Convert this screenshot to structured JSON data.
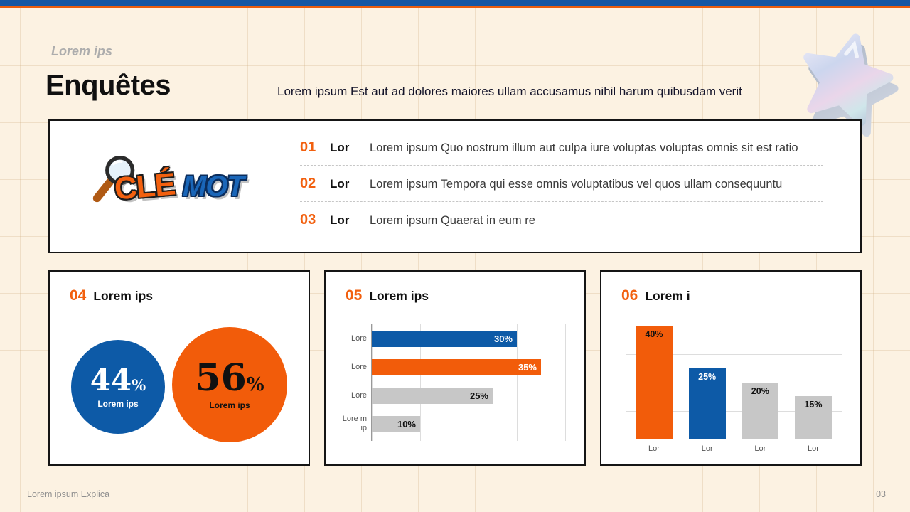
{
  "header": {
    "kicker": "Lorem ips",
    "title": "Enquêtes",
    "subtitle": "Lorem ipsum Est aut ad dolores maiores ullam accusamus nihil harum quibusdam verit"
  },
  "keyword": {
    "word1": "CLÉ",
    "word2": "MOT",
    "icon": "magnifier-icon"
  },
  "list": {
    "items": [
      {
        "num": "01",
        "label": "Lor",
        "text": "Lorem ipsum Quo nostrum illum aut culpa iure voluptas voluptas omnis sit est ratio"
      },
      {
        "num": "02",
        "label": "Lor",
        "text": "Lorem ipsum Tempora qui esse omnis voluptatibus vel quos ullam consequuntu"
      },
      {
        "num": "03",
        "label": "Lor",
        "text": "Lorem ipsum Quaerat in eum re"
      }
    ]
  },
  "panels": [
    {
      "num": "04",
      "title": "Lorem ips"
    },
    {
      "num": "05",
      "title": "Lorem ips"
    },
    {
      "num": "06",
      "title": "Lorem i"
    }
  ],
  "footer": {
    "left": "Lorem ipsum Explica",
    "page": "03"
  },
  "theme": {
    "top_bar_blue": "#1557a4",
    "top_bar_orange": "#e95d0f",
    "accent_orange": "#f2600f",
    "accent_blue": "#0d5aa7",
    "background": "#fcf2e2",
    "panel_border": "#151515",
    "gray_bar": "#c7c7c7"
  },
  "chart_data": [
    {
      "type": "pie",
      "panel": "04",
      "title": "Lorem ips",
      "slices": [
        {
          "label": "Lorem ips",
          "value": 44,
          "unit": "%",
          "color": "#0d5aa7",
          "text_color": "#ffffff"
        },
        {
          "label": "Lorem ips",
          "value": 56,
          "unit": "%",
          "color": "#f25c0a",
          "text_color": "#111111"
        }
      ],
      "layout": "two side-by-side circles sized by value"
    },
    {
      "type": "bar",
      "orientation": "horizontal",
      "panel": "05",
      "title": "Lorem ips",
      "categories": [
        "Lore",
        "Lore",
        "Lore",
        "Lore m ip"
      ],
      "values": [
        30,
        35,
        25,
        10
      ],
      "unit": "%",
      "colors": [
        "#0d5aa7",
        "#f25c0a",
        "#c7c7c7",
        "#c7c7c7"
      ],
      "value_label_colors": [
        "#ffffff",
        "#ffffff",
        "#111111",
        "#111111"
      ],
      "xlim": [
        0,
        40
      ],
      "gridlines": [
        10,
        20,
        30,
        40
      ],
      "grid": true
    },
    {
      "type": "bar",
      "orientation": "vertical",
      "panel": "06",
      "title": "Lorem i",
      "categories": [
        "Lor",
        "Lor",
        "Lor",
        "Lor"
      ],
      "values": [
        40,
        25,
        20,
        15
      ],
      "unit": "%",
      "colors": [
        "#f25c0a",
        "#0d5aa7",
        "#c7c7c7",
        "#c7c7c7"
      ],
      "value_label_colors": [
        "#111111",
        "#ffffff",
        "#111111",
        "#111111"
      ],
      "ylim": [
        0,
        40
      ],
      "gridlines": [
        10,
        20,
        30,
        40
      ],
      "grid": true
    }
  ]
}
